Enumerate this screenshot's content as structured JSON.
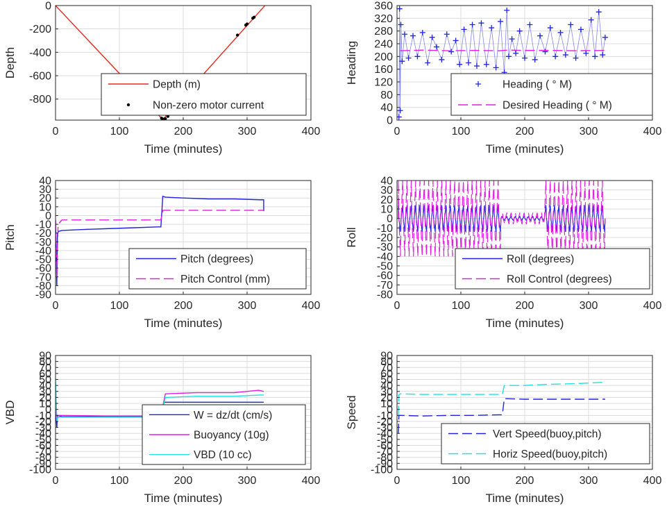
{
  "chart_data": [
    {
      "id": "depth",
      "type": "line",
      "xlabel": "Time (minutes)",
      "ylabel": "Depth",
      "xlim": [
        0,
        400
      ],
      "ylim": [
        -980,
        0
      ],
      "xticks": [
        0,
        100,
        200,
        300,
        400
      ],
      "yticks": [
        0,
        -200,
        -400,
        -600,
        -800
      ],
      "grid": true,
      "legend_position": "lower-right",
      "series": [
        {
          "name": "Depth (m)",
          "style": "solid",
          "color": "#e8271c",
          "x": [
            0,
            168,
            328
          ],
          "y": [
            0,
            -975,
            0
          ]
        },
        {
          "name": "Non-zero motor current",
          "style": "dots",
          "color": "#000000",
          "x": [
            166,
            168,
            170,
            172,
            176,
            285,
            298,
            300,
            309,
            311
          ],
          "y": [
            -963,
            -972,
            -972,
            -968,
            -948,
            -253,
            -167,
            -158,
            -108,
            -100
          ]
        }
      ]
    },
    {
      "id": "heading",
      "type": "scatter",
      "xlabel": "Time (minutes)",
      "ylabel": "Heading",
      "xlim": [
        0,
        400
      ],
      "ylim": [
        0,
        360
      ],
      "xticks": [
        0,
        100,
        200,
        300,
        400
      ],
      "yticks": [
        0,
        40,
        80,
        120,
        160,
        200,
        240,
        280,
        320,
        360
      ],
      "grid": true,
      "legend_position": "lower-right",
      "series": [
        {
          "name": "Heading (  ° M)",
          "style": "plus",
          "color": "#1f23e0",
          "x": [
            3,
            4,
            5,
            6,
            8,
            12,
            18,
            25,
            32,
            40,
            48,
            55,
            62,
            70,
            78,
            85,
            92,
            98,
            105,
            112,
            118,
            125,
            132,
            140,
            148,
            155,
            162,
            168,
            172,
            175,
            180,
            186,
            192,
            200,
            208,
            216,
            224,
            232,
            240,
            248,
            256,
            264,
            272,
            280,
            288,
            296,
            304,
            310,
            316,
            322,
            326
          ],
          "y": [
            10,
            350,
            30,
            300,
            185,
            270,
            195,
            265,
            200,
            275,
            180,
            260,
            230,
            190,
            270,
            215,
            250,
            175,
            285,
            180,
            300,
            170,
            305,
            175,
            290,
            165,
            310,
            150,
            345,
            200,
            255,
            210,
            280,
            195,
            300,
            190,
            265,
            215,
            290,
            200,
            275,
            205,
            300,
            195,
            285,
            210,
            315,
            200,
            340,
            205,
            260
          ]
        },
        {
          "name": "Desired Heading (     ° M)",
          "style": "dashed",
          "color": "#e01fe0",
          "x": [
            5,
            40,
            80,
            120,
            160,
            175,
            200,
            240,
            280,
            326
          ],
          "y": [
            218,
            220,
            218,
            219,
            218,
            220,
            219,
            219,
            218,
            219
          ]
        }
      ]
    },
    {
      "id": "pitch",
      "type": "line",
      "xlabel": "Time (minutes)",
      "ylabel": "Pitch",
      "xlim": [
        0,
        400
      ],
      "ylim": [
        -90,
        40
      ],
      "xticks": [
        0,
        100,
        200,
        300,
        400
      ],
      "yticks": [
        40,
        30,
        20,
        10,
        0,
        -10,
        -20,
        -30,
        -40,
        -50,
        -60,
        -70,
        -80,
        -90
      ],
      "grid": true,
      "legend_position": "lower-right",
      "series": [
        {
          "name": "Pitch (degrees)",
          "style": "solid",
          "color": "#1f23e0",
          "x": [
            0,
            2,
            3,
            5,
            10,
            40,
            80,
            120,
            160,
            165,
            168,
            172,
            200,
            240,
            280,
            320,
            326,
            326
          ],
          "y": [
            -5,
            -80,
            -20,
            -18,
            -17,
            -16,
            -15,
            -14,
            -13,
            -13,
            22,
            21,
            20,
            19,
            19,
            18,
            18,
            5
          ]
        },
        {
          "name": "Pitch Control (mm)",
          "style": "dashed",
          "color": "#e01fe0",
          "x": [
            0,
            2,
            4,
            10,
            160,
            165,
            168,
            200,
            326
          ],
          "y": [
            -5,
            -70,
            -10,
            -5,
            -5,
            -5,
            6,
            6,
            6
          ]
        }
      ]
    },
    {
      "id": "roll",
      "type": "line",
      "xlabel": "Time (minutes)",
      "ylabel": "Roll",
      "xlim": [
        0,
        400
      ],
      "ylim": [
        -80,
        40
      ],
      "xticks": [
        0,
        100,
        200,
        300,
        400
      ],
      "yticks": [
        40,
        30,
        20,
        10,
        0,
        -10,
        -20,
        -30,
        -40,
        -50,
        -60,
        -70,
        -80
      ],
      "grid": true,
      "legend_position": "lower-right",
      "series": [
        {
          "name": "Roll (degrees)",
          "style": "solid",
          "color": "#1f23e0",
          "x": [
            2,
            326
          ],
          "y": [
            0,
            0
          ],
          "amplitude": 14
        },
        {
          "name": "Roll Control (degrees)",
          "style": "dashed",
          "color": "#e01fe0",
          "x": [
            2,
            326
          ],
          "y": [
            0,
            0
          ],
          "amplitude": 40
        }
      ]
    },
    {
      "id": "vbd",
      "type": "line",
      "xlabel": "Time (minutes)",
      "ylabel": "VBD",
      "xlim": [
        0,
        400
      ],
      "ylim": [
        -100,
        90
      ],
      "xticks": [
        0,
        100,
        200,
        300,
        400
      ],
      "yticks": [
        90,
        80,
        70,
        60,
        50,
        40,
        30,
        20,
        10,
        0,
        -10,
        -20,
        -30,
        -40,
        -50,
        -60,
        -70,
        -80,
        -90,
        -100
      ],
      "grid": true,
      "legend_position": "lower-right",
      "series": [
        {
          "name": "W = dz/dt (cm/s)",
          "style": "solid",
          "color": "#1f23e0",
          "x": [
            0,
            2,
            3,
            10,
            80,
            160,
            165,
            170,
            200,
            260,
            320,
            326
          ],
          "y": [
            0,
            -30,
            -10,
            -12,
            -12,
            -12,
            -12,
            12,
            12,
            12,
            12,
            12
          ]
        },
        {
          "name": "Buoyancy (10g)",
          "style": "solid",
          "color": "#e01fe0",
          "x": [
            0,
            2,
            4,
            10,
            80,
            160,
            165,
            172,
            220,
            280,
            318,
            326
          ],
          "y": [
            40,
            -20,
            -10,
            -10,
            -11,
            -11,
            -11,
            26,
            28,
            28,
            32,
            30
          ]
        },
        {
          "name": "VBD (10 cc)",
          "style": "solid",
          "color": "#22e0e0",
          "x": [
            0,
            2,
            4,
            10,
            80,
            160,
            165,
            172,
            220,
            280,
            320,
            326
          ],
          "y": [
            50,
            -20,
            -13,
            -13,
            -13,
            -13,
            -13,
            20,
            22,
            22,
            24,
            24
          ]
        }
      ]
    },
    {
      "id": "speed",
      "type": "line",
      "xlabel": "Time (minutes)",
      "ylabel": "Speed",
      "xlim": [
        0,
        400
      ],
      "ylim": [
        -100,
        90
      ],
      "xticks": [
        0,
        100,
        200,
        300,
        400
      ],
      "yticks": [
        90,
        80,
        70,
        60,
        50,
        40,
        30,
        20,
        10,
        0,
        -10,
        -20,
        -30,
        -40,
        -50,
        -60,
        -70,
        -80,
        -90,
        -100
      ],
      "grid": true,
      "legend_position": "lower-right",
      "series": [
        {
          "name": "Vert Speed(buoy,pitch)",
          "style": "dashed",
          "color": "#1f23e0",
          "x": [
            2,
            3,
            6,
            40,
            80,
            120,
            160,
            165,
            168,
            200,
            240,
            280,
            320,
            326
          ],
          "y": [
            -40,
            -10,
            -10,
            -11,
            -10,
            -10,
            -9,
            -9,
            18,
            17,
            17,
            17,
            17,
            17
          ]
        },
        {
          "name": "Horiz Speed(buoy,pitch)",
          "style": "dashed",
          "color": "#22e0e0",
          "x": [
            2,
            3,
            6,
            40,
            80,
            120,
            160,
            165,
            168,
            200,
            240,
            280,
            320,
            326
          ],
          "y": [
            -10,
            25,
            26,
            25,
            25,
            25,
            25,
            25,
            40,
            40,
            42,
            43,
            45,
            44
          ]
        }
      ]
    }
  ]
}
